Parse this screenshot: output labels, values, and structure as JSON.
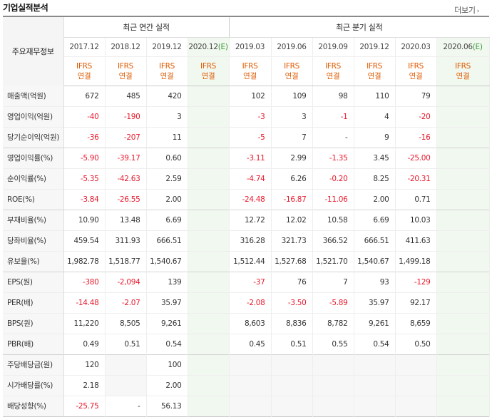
{
  "header": {
    "title": "기업실적분석",
    "more_label": "더보기"
  },
  "table": {
    "label_header": "주요재무정보",
    "annual_group": "최근 연간 실적",
    "quarterly_group": "최근 분기 실적",
    "annual_periods": [
      "2017.12",
      "2018.12",
      "2019.12",
      "2020.12"
    ],
    "annual_estimate_mark": "(E)",
    "quarterly_periods": [
      "2019.03",
      "2019.06",
      "2019.09",
      "2019.12",
      "2020.03",
      "2020.06"
    ],
    "quarterly_estimate_mark": "(E)",
    "basis_line1": "IFRS",
    "basis_line2": "연결",
    "rows": [
      {
        "label": "매출액(억원)",
        "annual": [
          "672",
          "485",
          "420",
          ""
        ],
        "quarterly": [
          "102",
          "109",
          "98",
          "110",
          "79",
          ""
        ]
      },
      {
        "label": "영업이익(억원)",
        "annual": [
          "-40",
          "-190",
          "3",
          ""
        ],
        "quarterly": [
          "-3",
          "3",
          "-1",
          "4",
          "-20",
          ""
        ]
      },
      {
        "label": "당기순이익(억원)",
        "annual": [
          "-36",
          "-207",
          "11",
          ""
        ],
        "quarterly": [
          "-5",
          "7",
          "-",
          "9",
          "-16",
          ""
        ]
      },
      {
        "label": "영업이익률(%)",
        "annual": [
          "-5.90",
          "-39.17",
          "0.60",
          ""
        ],
        "quarterly": [
          "-3.11",
          "2.99",
          "-1.35",
          "3.45",
          "-25.00",
          ""
        ]
      },
      {
        "label": "순이익률(%)",
        "annual": [
          "-5.35",
          "-42.63",
          "2.59",
          ""
        ],
        "quarterly": [
          "-4.74",
          "6.26",
          "-0.20",
          "8.25",
          "-20.31",
          ""
        ]
      },
      {
        "label": "ROE(%)",
        "annual": [
          "-3.84",
          "-26.55",
          "2.00",
          ""
        ],
        "quarterly": [
          "-24.48",
          "-16.87",
          "-11.06",
          "2.00",
          "0.71",
          ""
        ]
      },
      {
        "label": "부채비율(%)",
        "annual": [
          "10.90",
          "13.48",
          "6.69",
          ""
        ],
        "quarterly": [
          "12.72",
          "12.02",
          "10.58",
          "6.69",
          "10.03",
          ""
        ]
      },
      {
        "label": "당좌비율(%)",
        "annual": [
          "459.54",
          "311.93",
          "666.51",
          ""
        ],
        "quarterly": [
          "316.28",
          "321.73",
          "366.52",
          "666.51",
          "411.63",
          ""
        ]
      },
      {
        "label": "유보율(%)",
        "annual": [
          "1,982.78",
          "1,518.77",
          "1,540.67",
          ""
        ],
        "quarterly": [
          "1,512.44",
          "1,527.68",
          "1,521.70",
          "1,540.67",
          "1,499.18",
          ""
        ]
      },
      {
        "label": "EPS(원)",
        "annual": [
          "-380",
          "-2,094",
          "139",
          ""
        ],
        "quarterly": [
          "-37",
          "76",
          "7",
          "93",
          "-129",
          ""
        ]
      },
      {
        "label": "PER(배)",
        "annual": [
          "-14.48",
          "-2.07",
          "35.97",
          ""
        ],
        "quarterly": [
          "-2.08",
          "-3.50",
          "-5.89",
          "35.97",
          "92.17",
          ""
        ]
      },
      {
        "label": "BPS(원)",
        "annual": [
          "11,220",
          "8,505",
          "9,261",
          ""
        ],
        "quarterly": [
          "8,603",
          "8,836",
          "8,782",
          "9,261",
          "8,659",
          ""
        ]
      },
      {
        "label": "PBR(배)",
        "annual": [
          "0.49",
          "0.51",
          "0.54",
          ""
        ],
        "quarterly": [
          "0.45",
          "0.51",
          "0.55",
          "0.54",
          "0.50",
          ""
        ]
      },
      {
        "label": "주당배당금(원)",
        "annual": [
          "120",
          "",
          "100",
          ""
        ],
        "quarterly": [
          "",
          "",
          "",
          "",
          "",
          ""
        ]
      },
      {
        "label": "시가배당률(%)",
        "annual": [
          "2.18",
          "",
          "2.00",
          ""
        ],
        "quarterly": [
          "",
          "",
          "",
          "",
          "",
          ""
        ]
      },
      {
        "label": "배당성향(%)",
        "annual": [
          "-25.75",
          "-",
          "56.13",
          ""
        ],
        "quarterly": [
          "",
          "",
          "",
          "",
          "",
          ""
        ]
      }
    ]
  },
  "colors": {
    "negative": "#e8192c",
    "basis": "#e05a00",
    "estimate_bg": "#f1f8ef",
    "estimate_mark": "#3a9a3a",
    "label_bg": "#f7f7f7"
  }
}
